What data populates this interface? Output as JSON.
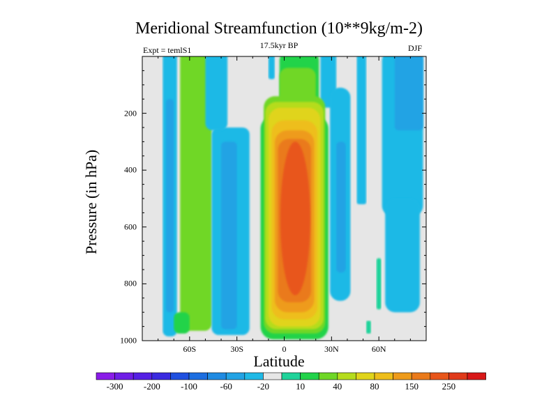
{
  "chart_data": {
    "type": "heatmap",
    "title": "Meridional Streamfunction (10**9kg/m-2)",
    "subtitle_left": "Expt = temlS1",
    "subtitle_center": "17.5kyr BP",
    "subtitle_right": "DJF",
    "xlabel": "Latitude",
    "ylabel": "Pressure (in hPa)",
    "x_range": [
      -90,
      90
    ],
    "y_range": [
      0,
      1000
    ],
    "y_inverted": true,
    "xticks": [
      {
        "value": -60,
        "label": "60S"
      },
      {
        "value": -30,
        "label": "30S"
      },
      {
        "value": 0,
        "label": "0"
      },
      {
        "value": 30,
        "label": "30N"
      },
      {
        "value": 60,
        "label": "60N"
      }
    ],
    "yticks": [
      {
        "value": 200,
        "label": "200"
      },
      {
        "value": 400,
        "label": "400"
      },
      {
        "value": 600,
        "label": "600"
      },
      {
        "value": 800,
        "label": "800"
      },
      {
        "value": 1000,
        "label": "1000"
      }
    ],
    "colorbar": {
      "colors": [
        "#8a1ce8",
        "#6f1ee6",
        "#5520e4",
        "#3a2ae0",
        "#1f50e0",
        "#1c6ee0",
        "#1f8be2",
        "#22a3e4",
        "#1fb9e6",
        "#e6e6e6",
        "#1fd39a",
        "#22d34a",
        "#6fd726",
        "#b5dc1c",
        "#e0d41a",
        "#eebe1a",
        "#ee9b1a",
        "#ea7a1a",
        "#e8561a",
        "#e03a1a",
        "#d81818"
      ],
      "labels": [
        "-300",
        "-200",
        "-100",
        "-60",
        "-20",
        "10",
        "40",
        "80",
        "150",
        "250"
      ],
      "label_after_box": [
        0,
        2,
        4,
        6,
        8,
        10,
        12,
        14,
        16,
        18
      ]
    },
    "features": [
      {
        "name": "southern-polar-cell",
        "level": "-20",
        "lat_range": [
          -76,
          -68
        ],
        "p_range": [
          0,
          980
        ]
      },
      {
        "name": "southern-ferrel-cell",
        "level": "40",
        "lat_range": [
          -64,
          -44
        ],
        "p_range": [
          0,
          965
        ]
      },
      {
        "name": "southern-midlat-cell",
        "level": "-20",
        "lat_range": [
          -44,
          -20
        ],
        "p_range": [
          0,
          980
        ]
      },
      {
        "name": "hadley-cell",
        "level": "250",
        "peak_lat": 8,
        "peak_p": 600,
        "lat_range": [
          -13,
          25
        ],
        "p_range": [
          0,
          990
        ]
      },
      {
        "name": "northern-ferrel-cell",
        "level": "-20",
        "lat_range": [
          30,
          42
        ],
        "p_range": [
          120,
          850
        ]
      },
      {
        "name": "northern-polar-cell",
        "level": "-20",
        "lat_range": [
          63,
          87
        ],
        "p_range": [
          0,
          900
        ]
      },
      {
        "name": "arctic-positive-cell",
        "level": "10",
        "lat_range": [
          59,
          61
        ],
        "p_range": [
          720,
          890
        ]
      }
    ]
  }
}
